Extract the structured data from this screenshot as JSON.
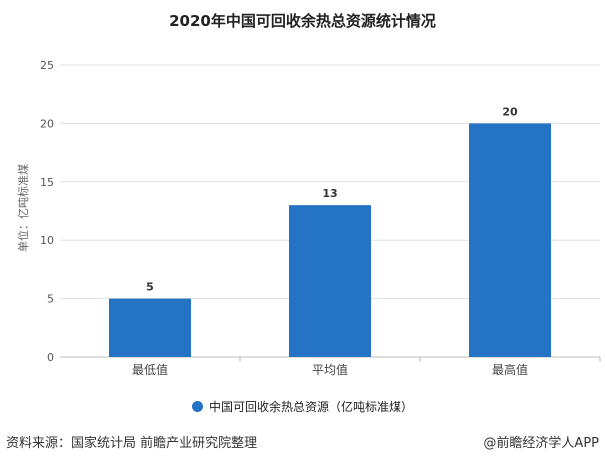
{
  "chart_data": {
    "type": "bar",
    "title": "2020年中国可回收余热总资源统计情况",
    "ylabel": "单位：亿吨标准煤",
    "categories": [
      "最低值",
      "平均值",
      "最高值"
    ],
    "series": [
      {
        "name": "中国可回收余热总资源（亿吨标准煤）",
        "values": [
          5,
          13,
          20
        ]
      }
    ],
    "ylim": [
      0,
      25
    ],
    "yticks": [
      0,
      5,
      10,
      15,
      20,
      25
    ],
    "grid": true,
    "legend": "bottom",
    "color": "#2473c4"
  },
  "footer": {
    "source": "资料来源：国家统计局 前瞻产业研究院整理",
    "credit": "@前瞻经济学人APP"
  }
}
